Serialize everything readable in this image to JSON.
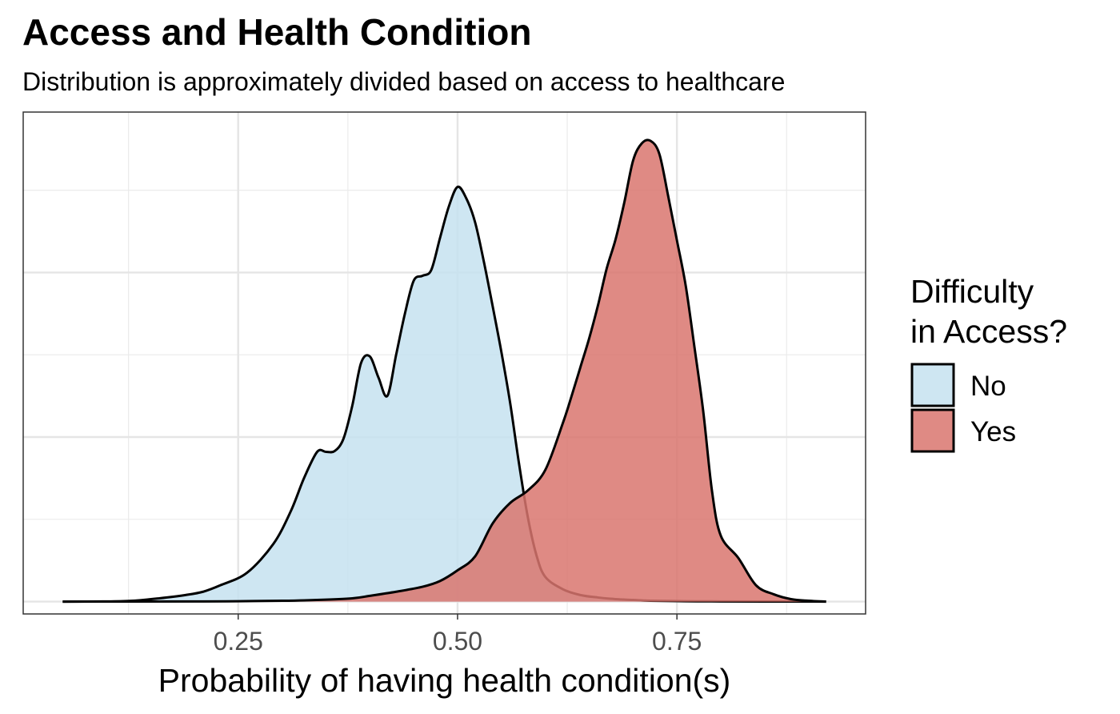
{
  "chart_data": {
    "type": "area",
    "title": "Access and Health Condition",
    "subtitle": "Distribution is approximately divided based on access to healthcare",
    "xlabel": "Probability of having health condition(s)",
    "ylabel": "",
    "xlim": [
      0.005,
      0.965
    ],
    "ylim": [
      -0.15,
      5.95
    ],
    "x_major_ticks": [
      0.25,
      0.5,
      0.75
    ],
    "x_tick_labels": [
      "0.25",
      "0.50",
      "0.75"
    ],
    "x_minor_gridlines": [
      0.125,
      0.375,
      0.625,
      0.875
    ],
    "y_major_gridlines": [
      0,
      2,
      4
    ],
    "y_minor_gridlines": [
      1,
      3,
      5
    ],
    "grid": true,
    "legend": {
      "title_lines": [
        "Difficulty",
        "in Access?"
      ],
      "placement": "right"
    },
    "series": [
      {
        "name": "No",
        "color": "#c6e2f0",
        "x": [
          0.05,
          0.1,
          0.13,
          0.16,
          0.19,
          0.21,
          0.23,
          0.26,
          0.29,
          0.31,
          0.325,
          0.34,
          0.35,
          0.36,
          0.37,
          0.38,
          0.39,
          0.4,
          0.41,
          0.42,
          0.43,
          0.44,
          0.45,
          0.46,
          0.47,
          0.48,
          0.49,
          0.5,
          0.51,
          0.52,
          0.53,
          0.54,
          0.55,
          0.56,
          0.57,
          0.58,
          0.59,
          0.6,
          0.62,
          0.64,
          0.66,
          0.68,
          0.7,
          0.72,
          0.76,
          0.8,
          0.85,
          0.92
        ],
        "values": [
          0,
          0.002,
          0.01,
          0.04,
          0.08,
          0.12,
          0.2,
          0.35,
          0.7,
          1.1,
          1.5,
          1.82,
          1.82,
          1.83,
          1.98,
          2.38,
          2.9,
          2.98,
          2.72,
          2.5,
          3.0,
          3.5,
          3.9,
          3.96,
          4.03,
          4.42,
          4.8,
          5.04,
          4.9,
          4.61,
          4.13,
          3.59,
          3.03,
          2.41,
          1.68,
          1.03,
          0.56,
          0.3,
          0.15,
          0.08,
          0.05,
          0.03,
          0.02,
          0.01,
          0.005,
          0.002,
          0.001,
          0
        ]
      },
      {
        "name": "Yes",
        "color": "#d9756f",
        "x": [
          0.05,
          0.2,
          0.25,
          0.3,
          0.34,
          0.38,
          0.4,
          0.43,
          0.46,
          0.48,
          0.5,
          0.52,
          0.54,
          0.56,
          0.58,
          0.6,
          0.62,
          0.63,
          0.64,
          0.65,
          0.66,
          0.67,
          0.68,
          0.69,
          0.7,
          0.71,
          0.72,
          0.73,
          0.74,
          0.75,
          0.76,
          0.77,
          0.78,
          0.79,
          0.8,
          0.82,
          0.84,
          0.86,
          0.88,
          0.9,
          0.92
        ],
        "values": [
          0,
          0.002,
          0.005,
          0.01,
          0.02,
          0.04,
          0.07,
          0.12,
          0.18,
          0.25,
          0.38,
          0.55,
          0.95,
          1.2,
          1.35,
          1.6,
          2.17,
          2.5,
          2.85,
          3.2,
          3.6,
          4.05,
          4.4,
          4.85,
          5.36,
          5.57,
          5.6,
          5.44,
          4.93,
          4.39,
          3.84,
          3.09,
          2.31,
          1.34,
          0.8,
          0.53,
          0.2,
          0.09,
          0.03,
          0.01,
          0
        ]
      }
    ]
  }
}
